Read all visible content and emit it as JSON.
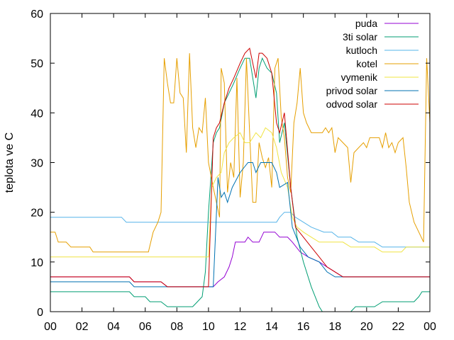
{
  "chart_data": {
    "type": "line",
    "title": "",
    "xlabel": "",
    "ylabel": "teplota ve C",
    "xlim": [
      0,
      24
    ],
    "ylim": [
      0,
      60
    ],
    "x_ticks": [
      "00",
      "02",
      "04",
      "06",
      "08",
      "10",
      "12",
      "14",
      "16",
      "18",
      "20",
      "22",
      "00"
    ],
    "y_ticks": [
      "0",
      "10",
      "20",
      "30",
      "40",
      "50",
      "60"
    ],
    "grid": false,
    "legend_position": "top-right",
    "series": [
      {
        "name": "puda",
        "color": "#9400d3",
        "points": [
          [
            0,
            7
          ],
          [
            5,
            7
          ],
          [
            5.3,
            6
          ],
          [
            7,
            6
          ],
          [
            7.4,
            5
          ],
          [
            10.3,
            5
          ],
          [
            10.6,
            6
          ],
          [
            11,
            7
          ],
          [
            11.3,
            9
          ],
          [
            11.5,
            11
          ],
          [
            11.7,
            14
          ],
          [
            12.3,
            14
          ],
          [
            12.5,
            15
          ],
          [
            12.8,
            14
          ],
          [
            13.2,
            14
          ],
          [
            13.5,
            16
          ],
          [
            14.2,
            16
          ],
          [
            14.5,
            15
          ],
          [
            15,
            15
          ],
          [
            15.3,
            14
          ],
          [
            15.8,
            12
          ],
          [
            16.3,
            11
          ],
          [
            17,
            10
          ],
          [
            17.5,
            9
          ],
          [
            18,
            8
          ],
          [
            18.5,
            7
          ],
          [
            24,
            7
          ]
        ]
      },
      {
        "name": "3ti solar",
        "color": "#009e73",
        "points": [
          [
            0,
            4
          ],
          [
            5,
            4
          ],
          [
            5.3,
            3
          ],
          [
            6,
            3
          ],
          [
            6.3,
            2
          ],
          [
            7,
            2
          ],
          [
            7.4,
            1
          ],
          [
            9,
            1
          ],
          [
            9.3,
            2
          ],
          [
            9.6,
            3
          ],
          [
            9.8,
            8
          ],
          [
            10,
            20
          ],
          [
            10.3,
            34
          ],
          [
            10.5,
            36
          ],
          [
            10.7,
            37
          ],
          [
            11,
            42
          ],
          [
            11.3,
            44
          ],
          [
            11.6,
            46
          ],
          [
            12,
            49
          ],
          [
            12.3,
            51
          ],
          [
            12.6,
            51
          ],
          [
            13,
            43
          ],
          [
            13.2,
            49
          ],
          [
            13.4,
            51
          ],
          [
            13.7,
            49
          ],
          [
            14,
            48
          ],
          [
            14.3,
            44
          ],
          [
            14.5,
            34
          ],
          [
            14.8,
            38
          ],
          [
            15.2,
            25
          ],
          [
            15.6,
            15
          ],
          [
            16,
            10
          ],
          [
            16.5,
            5
          ],
          [
            17,
            1
          ],
          [
            17.2,
            0
          ],
          [
            19,
            0
          ],
          [
            19.3,
            1
          ],
          [
            20.5,
            1
          ],
          [
            21,
            2
          ],
          [
            23,
            2
          ],
          [
            23.3,
            3
          ],
          [
            23.5,
            4
          ],
          [
            24,
            4
          ]
        ]
      },
      {
        "name": "kutloch",
        "color": "#56b4e9",
        "points": [
          [
            0,
            19
          ],
          [
            4.5,
            19
          ],
          [
            4.8,
            18
          ],
          [
            14.3,
            18
          ],
          [
            14.5,
            19
          ],
          [
            14.8,
            20
          ],
          [
            15.2,
            20
          ],
          [
            15.5,
            19
          ],
          [
            16,
            18
          ],
          [
            16.5,
            17
          ],
          [
            17.3,
            16
          ],
          [
            17.8,
            16
          ],
          [
            18.2,
            15
          ],
          [
            19,
            15
          ],
          [
            19.5,
            14
          ],
          [
            20.5,
            14
          ],
          [
            21,
            13
          ],
          [
            24,
            13
          ]
        ]
      },
      {
        "name": "kotel",
        "color": "#e69f00",
        "points": [
          [
            0,
            16
          ],
          [
            0.3,
            16
          ],
          [
            0.5,
            14
          ],
          [
            1,
            14
          ],
          [
            1.3,
            13
          ],
          [
            2.5,
            13
          ],
          [
            2.7,
            12
          ],
          [
            6.2,
            12
          ],
          [
            6.5,
            16
          ],
          [
            6.8,
            18
          ],
          [
            7,
            20
          ],
          [
            7.2,
            51
          ],
          [
            7.4,
            46
          ],
          [
            7.6,
            42
          ],
          [
            7.8,
            42
          ],
          [
            8,
            51
          ],
          [
            8.2,
            44
          ],
          [
            8.4,
            43
          ],
          [
            8.6,
            32
          ],
          [
            8.8,
            52
          ],
          [
            9,
            37
          ],
          [
            9.2,
            33
          ],
          [
            9.4,
            37
          ],
          [
            9.6,
            36
          ],
          [
            9.8,
            43
          ],
          [
            10,
            30
          ],
          [
            10.3,
            25
          ],
          [
            10.5,
            22
          ],
          [
            10.7,
            19
          ],
          [
            10.8,
            49
          ],
          [
            11,
            46
          ],
          [
            11.2,
            24
          ],
          [
            11.4,
            30
          ],
          [
            11.6,
            27
          ],
          [
            11.8,
            47
          ],
          [
            12,
            23
          ],
          [
            12.2,
            30
          ],
          [
            12.4,
            51
          ],
          [
            12.6,
            36
          ],
          [
            12.8,
            22
          ],
          [
            13,
            22
          ],
          [
            13.2,
            34
          ],
          [
            13.4,
            31
          ],
          [
            13.6,
            29
          ],
          [
            13.8,
            31
          ],
          [
            14,
            25
          ],
          [
            14.2,
            49
          ],
          [
            14.4,
            51
          ],
          [
            14.6,
            39
          ],
          [
            14.8,
            35
          ],
          [
            15,
            27
          ],
          [
            15.2,
            24
          ],
          [
            15.4,
            38
          ],
          [
            15.6,
            42
          ],
          [
            15.8,
            49
          ],
          [
            16,
            40
          ],
          [
            16.2,
            38
          ],
          [
            16.5,
            36
          ],
          [
            16.8,
            36
          ],
          [
            17.2,
            36
          ],
          [
            17.4,
            37
          ],
          [
            17.6,
            36
          ],
          [
            17.8,
            37
          ],
          [
            18,
            32
          ],
          [
            18.2,
            35
          ],
          [
            18.5,
            34
          ],
          [
            18.8,
            33
          ],
          [
            19,
            26
          ],
          [
            19.2,
            32
          ],
          [
            19.5,
            33
          ],
          [
            19.8,
            34
          ],
          [
            20,
            33
          ],
          [
            20.2,
            35
          ],
          [
            20.5,
            35
          ],
          [
            20.8,
            35
          ],
          [
            21,
            33
          ],
          [
            21.2,
            36
          ],
          [
            21.4,
            33
          ],
          [
            21.6,
            34
          ],
          [
            21.8,
            32
          ],
          [
            22,
            34
          ],
          [
            22.3,
            35
          ],
          [
            22.5,
            29
          ],
          [
            22.7,
            22
          ],
          [
            23,
            18
          ],
          [
            23.3,
            16
          ],
          [
            23.6,
            14
          ],
          [
            23.8,
            51
          ],
          [
            24,
            38
          ],
          [
            24.3,
            27
          ],
          [
            24.6,
            22
          ],
          [
            24.8,
            17
          ]
        ]
      },
      {
        "name": "vymenik",
        "color": "#f0e442",
        "points": [
          [
            0,
            11
          ],
          [
            10,
            11
          ],
          [
            10.2,
            25
          ],
          [
            10.5,
            27
          ],
          [
            10.8,
            28
          ],
          [
            11,
            32
          ],
          [
            11.3,
            34
          ],
          [
            11.6,
            35
          ],
          [
            12,
            36
          ],
          [
            12.3,
            34
          ],
          [
            12.6,
            34
          ],
          [
            13,
            36
          ],
          [
            13.3,
            35
          ],
          [
            13.6,
            37
          ],
          [
            14,
            36
          ],
          [
            14.3,
            33
          ],
          [
            14.6,
            28
          ],
          [
            15,
            25
          ],
          [
            15.3,
            19
          ],
          [
            15.6,
            17
          ],
          [
            16,
            16
          ],
          [
            16.5,
            15
          ],
          [
            17,
            14
          ],
          [
            18.5,
            14
          ],
          [
            19,
            13
          ],
          [
            20.5,
            13
          ],
          [
            21,
            12
          ],
          [
            22.2,
            12
          ],
          [
            22.5,
            13
          ],
          [
            24,
            13
          ]
        ]
      },
      {
        "name": "privod solar",
        "color": "#0072b2",
        "points": [
          [
            0,
            6
          ],
          [
            5,
            6
          ],
          [
            5.3,
            5
          ],
          [
            10.3,
            5
          ],
          [
            10.6,
            27
          ],
          [
            10.8,
            23
          ],
          [
            11,
            24
          ],
          [
            11.2,
            22
          ],
          [
            11.5,
            25
          ],
          [
            12,
            28
          ],
          [
            12.5,
            30
          ],
          [
            12.8,
            30
          ],
          [
            13,
            28
          ],
          [
            13.3,
            30
          ],
          [
            14,
            30
          ],
          [
            14.3,
            28
          ],
          [
            14.5,
            25
          ],
          [
            15,
            26
          ],
          [
            15.3,
            17
          ],
          [
            15.8,
            13
          ],
          [
            16.3,
            11
          ],
          [
            17,
            10
          ],
          [
            17.5,
            8
          ],
          [
            18,
            7
          ],
          [
            24,
            7
          ]
        ]
      },
      {
        "name": "odvod solar",
        "color": "#cc0000",
        "points": [
          [
            0,
            7
          ],
          [
            5,
            7
          ],
          [
            5.3,
            6
          ],
          [
            7,
            6
          ],
          [
            7.4,
            5
          ],
          [
            10,
            5
          ],
          [
            10.3,
            35
          ],
          [
            10.5,
            37
          ],
          [
            10.7,
            38
          ],
          [
            11,
            42
          ],
          [
            11.3,
            45
          ],
          [
            11.6,
            47
          ],
          [
            12,
            50
          ],
          [
            12.3,
            52
          ],
          [
            12.6,
            53
          ],
          [
            13,
            47
          ],
          [
            13.2,
            52
          ],
          [
            13.4,
            52
          ],
          [
            13.7,
            51
          ],
          [
            14,
            48
          ],
          [
            14.3,
            38
          ],
          [
            14.5,
            36
          ],
          [
            14.8,
            40
          ],
          [
            15.2,
            25
          ],
          [
            15.5,
            17
          ],
          [
            16,
            15
          ],
          [
            16.5,
            13
          ],
          [
            17,
            11
          ],
          [
            17.5,
            9
          ],
          [
            18,
            8
          ],
          [
            18.5,
            7
          ],
          [
            24,
            7
          ]
        ]
      }
    ]
  }
}
